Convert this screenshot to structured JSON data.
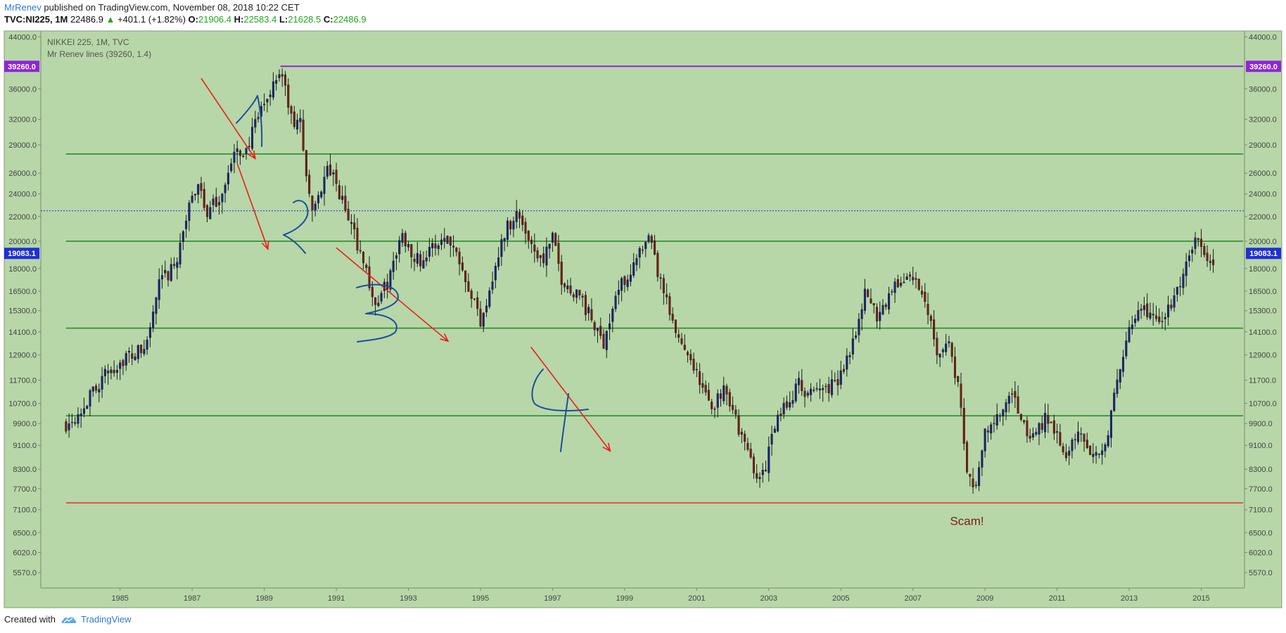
{
  "header": {
    "author": "MrRenev",
    "published_text": "published on TradingView.com, November 08, 2018 10:22 CET"
  },
  "symbol_bar": {
    "symbol": "TVC:NI225, 1M",
    "last": "22486.9",
    "change": "+401.1 (+1.82%)",
    "open_label": "O:",
    "open": "21906.4",
    "high_label": "H:",
    "high": "22583.4",
    "low_label": "L:",
    "low": "21628.5",
    "close_label": "C:",
    "close": "22486.9"
  },
  "footer": {
    "created_with": "Created with",
    "brand": "TradingView"
  },
  "colors": {
    "plot_bg": "#b7d7a8",
    "up_candle": "#1a237e",
    "down_candle": "#7b1c12",
    "support_line": "#2e8b2e",
    "top_line": "#8e24d8",
    "bottom_line": "#e53935",
    "arrow": "#ee1c1c",
    "handwriting": "#1a4f9c",
    "price_line": "#1f2fd6"
  },
  "chart_data": {
    "type": "candlestick",
    "legend_title": "NIKKEI 225, 1M, TVC",
    "legend_indicator": "Mr Renev lines (39260, 1.4)",
    "x_ticks": [
      "1985",
      "1987",
      "1989",
      "1991",
      "1993",
      "1995",
      "1997",
      "1999",
      "2001",
      "2003",
      "2005",
      "2007",
      "2009",
      "2011",
      "2013",
      "2015"
    ],
    "y_ticks": [
      5570,
      6020,
      6500,
      7100,
      7700,
      8300,
      9100,
      9900,
      10700,
      11700,
      12900,
      14100,
      15300,
      16500,
      18000,
      20000,
      22000,
      24000,
      26000,
      29000,
      32000,
      36000,
      44000
    ],
    "y_tick_labels": [
      "5570.0",
      "6020.0",
      "6500.0",
      "7100.0",
      "7700.0",
      "8300.0",
      "9100.0",
      "9900.0",
      "10700.0",
      "11700.0",
      "12900.0",
      "14100.0",
      "15300.0",
      "16500.0",
      "18000.0",
      "20000.0",
      "22000.0",
      "24000.0",
      "26000.0",
      "29000.0",
      "32000.0",
      "36000.0",
      "44000.0"
    ],
    "y_scale": "log",
    "x_range": [
      1983.3,
      2016.7
    ],
    "y_range": [
      5250,
      45000
    ],
    "horizontal_lines": [
      {
        "name": "top",
        "value": 39260,
        "color": "#8e24d8",
        "label": "39260.0"
      },
      {
        "name": "level",
        "value": 28000,
        "color": "#2e8b2e"
      },
      {
        "name": "level",
        "value": 20000,
        "color": "#2e8b2e"
      },
      {
        "name": "level",
        "value": 14300,
        "color": "#2e8b2e"
      },
      {
        "name": "level",
        "value": 10200,
        "color": "#2e8b2e"
      },
      {
        "name": "bottom",
        "value": 7290,
        "color": "#e53935"
      }
    ],
    "current_price_line": {
      "value": 22486.9
    },
    "price_marker": {
      "value": 19083.1,
      "label": "19083.1"
    },
    "annotation_text": "Scam!",
    "annotation_position": {
      "x": 2009.0,
      "y": 6690
    },
    "handwritten_labels": [
      "1",
      "2",
      "3",
      "4"
    ],
    "arrows": [
      {
        "from": [
          1987.75,
          37500
        ],
        "to": [
          1989.25,
          27500
        ]
      },
      {
        "from": [
          1988.75,
          27000
        ],
        "to": [
          1989.6,
          19400
        ]
      },
      {
        "from": [
          1991.5,
          19500
        ],
        "to": [
          1994.6,
          13600
        ]
      },
      {
        "from": [
          1996.9,
          13300
        ],
        "to": [
          1999.1,
          8900
        ]
      }
    ],
    "anchors": [
      {
        "t": 1984.0,
        "v": 9900
      },
      {
        "t": 1984.5,
        "v": 10600
      },
      {
        "t": 1985.0,
        "v": 11800
      },
      {
        "t": 1985.6,
        "v": 12700
      },
      {
        "t": 1986.2,
        "v": 13200
      },
      {
        "t": 1986.6,
        "v": 17000
      },
      {
        "t": 1987.0,
        "v": 18000
      },
      {
        "t": 1987.3,
        "v": 21500
      },
      {
        "t": 1987.7,
        "v": 25500
      },
      {
        "t": 1987.9,
        "v": 22000
      },
      {
        "t": 1988.3,
        "v": 24000
      },
      {
        "t": 1988.7,
        "v": 28000
      },
      {
        "t": 1989.0,
        "v": 28500
      },
      {
        "t": 1989.5,
        "v": 34000
      },
      {
        "t": 1989.95,
        "v": 38900
      },
      {
        "t": 1990.3,
        "v": 31000
      },
      {
        "t": 1990.5,
        "v": 32000
      },
      {
        "t": 1990.8,
        "v": 22000
      },
      {
        "t": 1991.0,
        "v": 24000
      },
      {
        "t": 1991.3,
        "v": 26500
      },
      {
        "t": 1991.7,
        "v": 23000
      },
      {
        "t": 1992.2,
        "v": 19000
      },
      {
        "t": 1992.6,
        "v": 15500
      },
      {
        "t": 1993.0,
        "v": 17500
      },
      {
        "t": 1993.3,
        "v": 20500
      },
      {
        "t": 1993.8,
        "v": 18500
      },
      {
        "t": 1994.2,
        "v": 19500
      },
      {
        "t": 1994.5,
        "v": 20500
      },
      {
        "t": 1994.9,
        "v": 19000
      },
      {
        "t": 1995.3,
        "v": 16000
      },
      {
        "t": 1995.5,
        "v": 14700
      },
      {
        "t": 1995.9,
        "v": 18000
      },
      {
        "t": 1996.2,
        "v": 21000
      },
      {
        "t": 1996.5,
        "v": 22300
      },
      {
        "t": 1996.9,
        "v": 20000
      },
      {
        "t": 1997.2,
        "v": 18500
      },
      {
        "t": 1997.5,
        "v": 20200
      },
      {
        "t": 1997.8,
        "v": 16800
      },
      {
        "t": 1998.2,
        "v": 16500
      },
      {
        "t": 1998.7,
        "v": 14200
      },
      {
        "t": 1998.9,
        "v": 13500
      },
      {
        "t": 1999.3,
        "v": 16500
      },
      {
        "t": 1999.8,
        "v": 18500
      },
      {
        "t": 2000.2,
        "v": 20000
      },
      {
        "t": 2000.5,
        "v": 17000
      },
      {
        "t": 2000.9,
        "v": 14000
      },
      {
        "t": 2001.3,
        "v": 13000
      },
      {
        "t": 2001.6,
        "v": 11500
      },
      {
        "t": 2001.9,
        "v": 10500
      },
      {
        "t": 2002.3,
        "v": 11500
      },
      {
        "t": 2002.7,
        "v": 9500
      },
      {
        "t": 2003.0,
        "v": 8600
      },
      {
        "t": 2003.3,
        "v": 7900
      },
      {
        "t": 2003.6,
        "v": 9500
      },
      {
        "t": 2003.9,
        "v": 10500
      },
      {
        "t": 2004.3,
        "v": 11500
      },
      {
        "t": 2004.7,
        "v": 11000
      },
      {
        "t": 2005.0,
        "v": 11400
      },
      {
        "t": 2005.4,
        "v": 11500
      },
      {
        "t": 2005.8,
        "v": 13500
      },
      {
        "t": 2006.2,
        "v": 16500
      },
      {
        "t": 2006.5,
        "v": 15000
      },
      {
        "t": 2006.9,
        "v": 16500
      },
      {
        "t": 2007.3,
        "v": 17500
      },
      {
        "t": 2007.6,
        "v": 17000
      },
      {
        "t": 2007.9,
        "v": 15500
      },
      {
        "t": 2008.2,
        "v": 13000
      },
      {
        "t": 2008.5,
        "v": 13500
      },
      {
        "t": 2008.8,
        "v": 11000
      },
      {
        "t": 2008.95,
        "v": 8500
      },
      {
        "t": 2009.2,
        "v": 7500
      },
      {
        "t": 2009.5,
        "v": 9500
      },
      {
        "t": 2009.9,
        "v": 10200
      },
      {
        "t": 2010.3,
        "v": 11000
      },
      {
        "t": 2010.6,
        "v": 9600
      },
      {
        "t": 2010.9,
        "v": 9400
      },
      {
        "t": 2011.2,
        "v": 10300
      },
      {
        "t": 2011.5,
        "v": 9500
      },
      {
        "t": 2011.8,
        "v": 8800
      },
      {
        "t": 2012.2,
        "v": 9700
      },
      {
        "t": 2012.5,
        "v": 8700
      },
      {
        "t": 2012.9,
        "v": 9400
      },
      {
        "t": 2013.2,
        "v": 12000
      },
      {
        "t": 2013.5,
        "v": 14000
      },
      {
        "t": 2013.9,
        "v": 15500
      },
      {
        "t": 2014.3,
        "v": 14500
      },
      {
        "t": 2014.7,
        "v": 15800
      },
      {
        "t": 2015.0,
        "v": 17500
      },
      {
        "t": 2015.4,
        "v": 20500
      },
      {
        "t": 2015.6,
        "v": 19000
      },
      {
        "t": 2015.75,
        "v": 18000
      },
      {
        "t": 2015.9,
        "v": 19500
      }
    ]
  }
}
